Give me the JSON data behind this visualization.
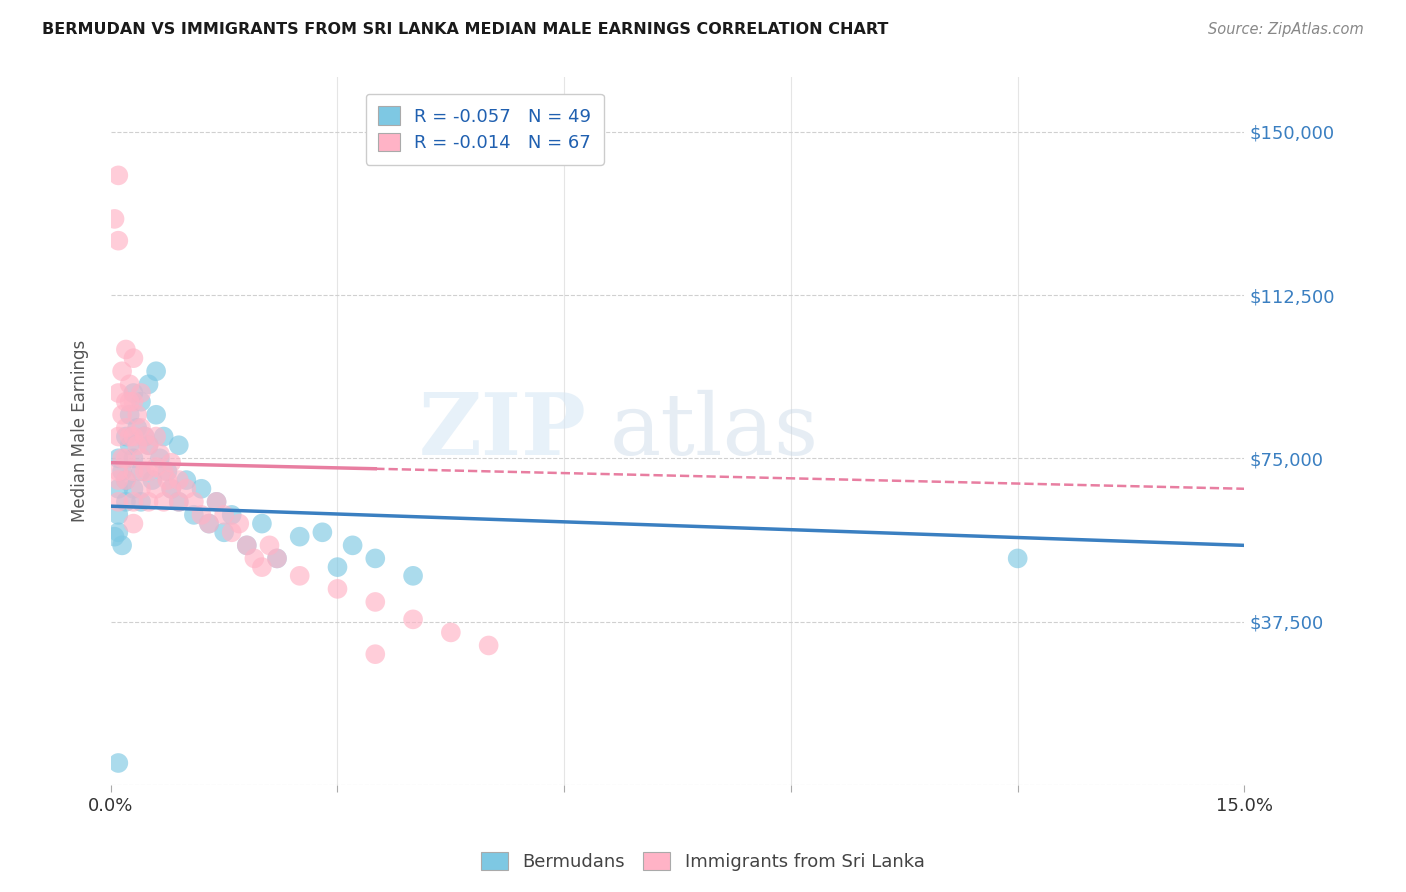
{
  "title": "BERMUDAN VS IMMIGRANTS FROM SRI LANKA MEDIAN MALE EARNINGS CORRELATION CHART",
  "source": "Source: ZipAtlas.com",
  "ylabel": "Median Male Earnings",
  "yticks": [
    0,
    37500,
    75000,
    112500,
    150000
  ],
  "ytick_labels": [
    "",
    "$37,500",
    "$75,000",
    "$112,500",
    "$150,000"
  ],
  "xmin": 0.0,
  "xmax": 0.15,
  "ymin": 0,
  "ymax": 162500,
  "legend_r1": "-0.057",
  "legend_n1": "49",
  "legend_r2": "-0.014",
  "legend_n2": "67",
  "legend_label1": "Bermudans",
  "legend_label2": "Immigrants from Sri Lanka",
  "blue_color": "#7ec8e3",
  "pink_color": "#ffb3c6",
  "blue_line_color": "#3a7fc1",
  "pink_line_color": "#e87ea1",
  "blue_x": [
    0.0005,
    0.001,
    0.001,
    0.001,
    0.001,
    0.0015,
    0.0015,
    0.002,
    0.002,
    0.002,
    0.0025,
    0.0025,
    0.003,
    0.003,
    0.003,
    0.0035,
    0.004,
    0.004,
    0.004,
    0.0045,
    0.005,
    0.005,
    0.0055,
    0.006,
    0.006,
    0.0065,
    0.007,
    0.0075,
    0.008,
    0.009,
    0.009,
    0.01,
    0.011,
    0.012,
    0.013,
    0.014,
    0.015,
    0.016,
    0.018,
    0.02,
    0.022,
    0.025,
    0.028,
    0.03,
    0.032,
    0.035,
    0.04,
    0.12,
    0.001
  ],
  "blue_y": [
    57000,
    62000,
    75000,
    58000,
    68000,
    55000,
    72000,
    80000,
    65000,
    70000,
    85000,
    78000,
    90000,
    68000,
    75000,
    82000,
    88000,
    72000,
    65000,
    80000,
    78000,
    92000,
    70000,
    85000,
    95000,
    75000,
    80000,
    72000,
    68000,
    78000,
    65000,
    70000,
    62000,
    68000,
    60000,
    65000,
    58000,
    62000,
    55000,
    60000,
    52000,
    57000,
    58000,
    50000,
    55000,
    52000,
    48000,
    52000,
    5000
  ],
  "pink_x": [
    0.0005,
    0.001,
    0.001,
    0.001,
    0.001,
    0.001,
    0.0015,
    0.0015,
    0.0015,
    0.002,
    0.002,
    0.002,
    0.002,
    0.0025,
    0.0025,
    0.003,
    0.003,
    0.003,
    0.003,
    0.0035,
    0.0035,
    0.004,
    0.004,
    0.004,
    0.0045,
    0.0045,
    0.005,
    0.005,
    0.005,
    0.006,
    0.006,
    0.006,
    0.0065,
    0.007,
    0.007,
    0.0075,
    0.008,
    0.008,
    0.009,
    0.009,
    0.01,
    0.011,
    0.012,
    0.013,
    0.014,
    0.015,
    0.016,
    0.017,
    0.018,
    0.019,
    0.02,
    0.021,
    0.022,
    0.025,
    0.03,
    0.035,
    0.04,
    0.045,
    0.05,
    0.001,
    0.002,
    0.003,
    0.004,
    0.035,
    0.001,
    0.0025,
    0.003
  ],
  "pink_y": [
    130000,
    125000,
    90000,
    80000,
    70000,
    65000,
    95000,
    85000,
    75000,
    88000,
    82000,
    75000,
    70000,
    92000,
    80000,
    88000,
    80000,
    72000,
    65000,
    85000,
    78000,
    82000,
    75000,
    68000,
    80000,
    72000,
    78000,
    72000,
    65000,
    80000,
    73000,
    68000,
    76000,
    72000,
    65000,
    70000,
    74000,
    68000,
    70000,
    65000,
    68000,
    65000,
    62000,
    60000,
    65000,
    62000,
    58000,
    60000,
    55000,
    52000,
    50000,
    55000,
    52000,
    48000,
    45000,
    42000,
    38000,
    35000,
    32000,
    140000,
    100000,
    98000,
    90000,
    30000,
    72000,
    88000,
    60000
  ],
  "background_color": "#ffffff",
  "grid_color": "#d0d0d0",
  "blue_trend_y0": 64000,
  "blue_trend_y1": 55000,
  "pink_trend_y0": 74000,
  "pink_trend_y1": 68000
}
